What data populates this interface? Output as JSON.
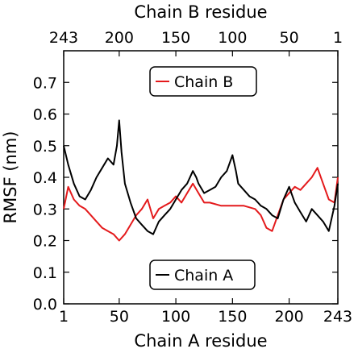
{
  "chart_data": {
    "type": "line",
    "xlabel": "Chain A residue",
    "x2label": "Chain B residue",
    "ylabel": "RMSF (nm)",
    "xlim": [
      1,
      243
    ],
    "ylim": [
      0.0,
      0.8
    ],
    "x_ticks": [
      1,
      50,
      100,
      150,
      200,
      243
    ],
    "x_tick_labels": [
      "1",
      "50",
      "100",
      "150",
      "200",
      "243"
    ],
    "x2_tick_labels": [
      "243",
      "200",
      "150",
      "100",
      "50",
      "1"
    ],
    "y_ticks": [
      0.0,
      0.1,
      0.2,
      0.3,
      0.4,
      0.5,
      0.6,
      0.7
    ],
    "y_tick_labels": [
      "0.0",
      "0.1",
      "0.2",
      "0.3",
      "0.4",
      "0.5",
      "0.6",
      "0.7"
    ],
    "grid": false,
    "series": [
      {
        "name": "Chain A",
        "color": "#000000",
        "legend": "bottom-center",
        "x": [
          1,
          5,
          10,
          15,
          20,
          25,
          30,
          35,
          40,
          45,
          48,
          50,
          52,
          55,
          60,
          65,
          70,
          75,
          80,
          85,
          90,
          95,
          100,
          105,
          110,
          115,
          118,
          120,
          125,
          130,
          135,
          140,
          145,
          148,
          150,
          153,
          155,
          160,
          165,
          170,
          175,
          180,
          185,
          190,
          195,
          200,
          205,
          210,
          215,
          220,
          225,
          230,
          235,
          240,
          243
        ],
        "values": [
          0.5,
          0.44,
          0.38,
          0.34,
          0.33,
          0.36,
          0.4,
          0.43,
          0.46,
          0.44,
          0.5,
          0.58,
          0.48,
          0.38,
          0.32,
          0.27,
          0.25,
          0.23,
          0.22,
          0.26,
          0.28,
          0.3,
          0.33,
          0.36,
          0.38,
          0.42,
          0.4,
          0.38,
          0.35,
          0.36,
          0.37,
          0.4,
          0.42,
          0.45,
          0.47,
          0.42,
          0.38,
          0.36,
          0.34,
          0.33,
          0.31,
          0.3,
          0.28,
          0.27,
          0.33,
          0.37,
          0.32,
          0.29,
          0.26,
          0.3,
          0.28,
          0.26,
          0.23,
          0.31,
          0.38
        ]
      },
      {
        "name": "Chain B",
        "color": "#e41a1c",
        "legend": "top-center",
        "x": [
          1,
          5,
          10,
          15,
          20,
          25,
          30,
          35,
          40,
          45,
          50,
          55,
          60,
          65,
          70,
          75,
          80,
          85,
          90,
          95,
          100,
          105,
          110,
          115,
          120,
          125,
          130,
          140,
          150,
          160,
          170,
          175,
          180,
          185,
          190,
          195,
          200,
          205,
          210,
          215,
          220,
          225,
          230,
          235,
          240,
          243
        ],
        "values": [
          0.3,
          0.37,
          0.33,
          0.31,
          0.3,
          0.28,
          0.26,
          0.24,
          0.23,
          0.22,
          0.2,
          0.22,
          0.25,
          0.28,
          0.3,
          0.33,
          0.27,
          0.3,
          0.31,
          0.32,
          0.34,
          0.32,
          0.35,
          0.38,
          0.35,
          0.32,
          0.32,
          0.31,
          0.31,
          0.31,
          0.3,
          0.28,
          0.24,
          0.23,
          0.28,
          0.33,
          0.35,
          0.37,
          0.36,
          0.38,
          0.4,
          0.43,
          0.38,
          0.33,
          0.32,
          0.4
        ]
      }
    ]
  }
}
